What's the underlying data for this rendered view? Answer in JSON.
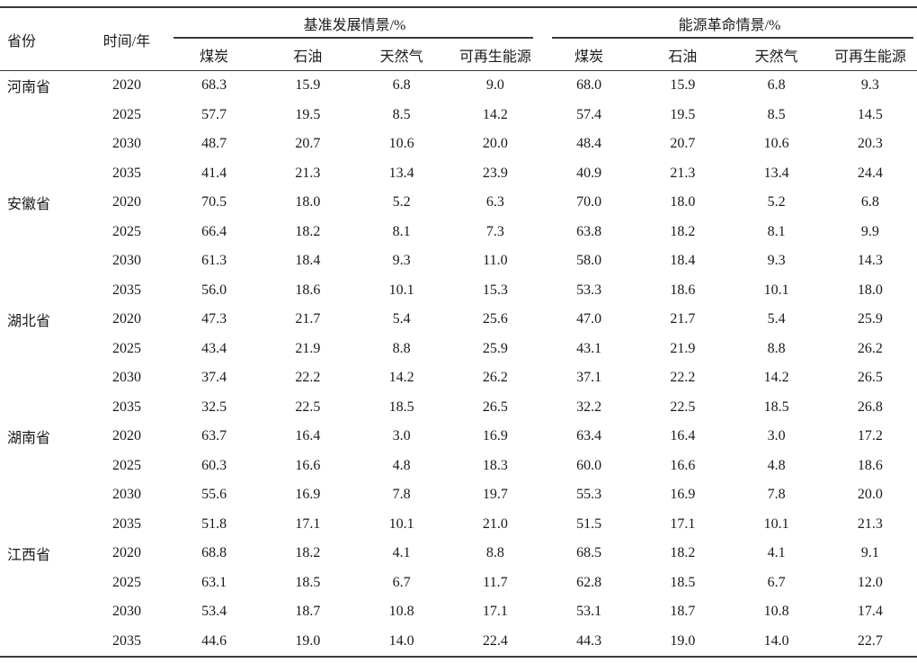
{
  "chart_data": {
    "type": "table",
    "columns": {
      "province": "省份",
      "time": "时间/年",
      "group_baseline": "基准发展情景/%",
      "group_revolution": "能源革命情景/%",
      "subcolumns": [
        "煤炭",
        "石油",
        "天然气",
        "可再生能源"
      ]
    },
    "rows": [
      {
        "province": "河南省",
        "year": "2020",
        "baseline": [
          "68.3",
          "15.9",
          "6.8",
          "9.0"
        ],
        "revolution": [
          "68.0",
          "15.9",
          "6.8",
          "9.3"
        ]
      },
      {
        "province": "",
        "year": "2025",
        "baseline": [
          "57.7",
          "19.5",
          "8.5",
          "14.2"
        ],
        "revolution": [
          "57.4",
          "19.5",
          "8.5",
          "14.5"
        ]
      },
      {
        "province": "",
        "year": "2030",
        "baseline": [
          "48.7",
          "20.7",
          "10.6",
          "20.0"
        ],
        "revolution": [
          "48.4",
          "20.7",
          "10.6",
          "20.3"
        ]
      },
      {
        "province": "",
        "year": "2035",
        "baseline": [
          "41.4",
          "21.3",
          "13.4",
          "23.9"
        ],
        "revolution": [
          "40.9",
          "21.3",
          "13.4",
          "24.4"
        ]
      },
      {
        "province": "安徽省",
        "year": "2020",
        "baseline": [
          "70.5",
          "18.0",
          "5.2",
          "6.3"
        ],
        "revolution": [
          "70.0",
          "18.0",
          "5.2",
          "6.8"
        ]
      },
      {
        "province": "",
        "year": "2025",
        "baseline": [
          "66.4",
          "18.2",
          "8.1",
          "7.3"
        ],
        "revolution": [
          "63.8",
          "18.2",
          "8.1",
          "9.9"
        ]
      },
      {
        "province": "",
        "year": "2030",
        "baseline": [
          "61.3",
          "18.4",
          "9.3",
          "11.0"
        ],
        "revolution": [
          "58.0",
          "18.4",
          "9.3",
          "14.3"
        ]
      },
      {
        "province": "",
        "year": "2035",
        "baseline": [
          "56.0",
          "18.6",
          "10.1",
          "15.3"
        ],
        "revolution": [
          "53.3",
          "18.6",
          "10.1",
          "18.0"
        ]
      },
      {
        "province": "湖北省",
        "year": "2020",
        "baseline": [
          "47.3",
          "21.7",
          "5.4",
          "25.6"
        ],
        "revolution": [
          "47.0",
          "21.7",
          "5.4",
          "25.9"
        ]
      },
      {
        "province": "",
        "year": "2025",
        "baseline": [
          "43.4",
          "21.9",
          "8.8",
          "25.9"
        ],
        "revolution": [
          "43.1",
          "21.9",
          "8.8",
          "26.2"
        ]
      },
      {
        "province": "",
        "year": "2030",
        "baseline": [
          "37.4",
          "22.2",
          "14.2",
          "26.2"
        ],
        "revolution": [
          "37.1",
          "22.2",
          "14.2",
          "26.5"
        ]
      },
      {
        "province": "",
        "year": "2035",
        "baseline": [
          "32.5",
          "22.5",
          "18.5",
          "26.5"
        ],
        "revolution": [
          "32.2",
          "22.5",
          "18.5",
          "26.8"
        ]
      },
      {
        "province": "湖南省",
        "year": "2020",
        "baseline": [
          "63.7",
          "16.4",
          "3.0",
          "16.9"
        ],
        "revolution": [
          "63.4",
          "16.4",
          "3.0",
          "17.2"
        ]
      },
      {
        "province": "",
        "year": "2025",
        "baseline": [
          "60.3",
          "16.6",
          "4.8",
          "18.3"
        ],
        "revolution": [
          "60.0",
          "16.6",
          "4.8",
          "18.6"
        ]
      },
      {
        "province": "",
        "year": "2030",
        "baseline": [
          "55.6",
          "16.9",
          "7.8",
          "19.7"
        ],
        "revolution": [
          "55.3",
          "16.9",
          "7.8",
          "20.0"
        ]
      },
      {
        "province": "",
        "year": "2035",
        "baseline": [
          "51.8",
          "17.1",
          "10.1",
          "21.0"
        ],
        "revolution": [
          "51.5",
          "17.1",
          "10.1",
          "21.3"
        ]
      },
      {
        "province": "江西省",
        "year": "2020",
        "baseline": [
          "68.8",
          "18.2",
          "4.1",
          "8.8"
        ],
        "revolution": [
          "68.5",
          "18.2",
          "4.1",
          "9.1"
        ]
      },
      {
        "province": "",
        "year": "2025",
        "baseline": [
          "63.1",
          "18.5",
          "6.7",
          "11.7"
        ],
        "revolution": [
          "62.8",
          "18.5",
          "6.7",
          "12.0"
        ]
      },
      {
        "province": "",
        "year": "2030",
        "baseline": [
          "53.4",
          "18.7",
          "10.8",
          "17.1"
        ],
        "revolution": [
          "53.1",
          "18.7",
          "10.8",
          "17.4"
        ]
      },
      {
        "province": "",
        "year": "2035",
        "baseline": [
          "44.6",
          "19.0",
          "14.0",
          "22.4"
        ],
        "revolution": [
          "44.3",
          "19.0",
          "14.0",
          "22.7"
        ]
      }
    ]
  },
  "style_tokens": {
    "rule_color": "#3a3a3a",
    "text_color": "#1a1a1a",
    "background": "#ffffff"
  }
}
